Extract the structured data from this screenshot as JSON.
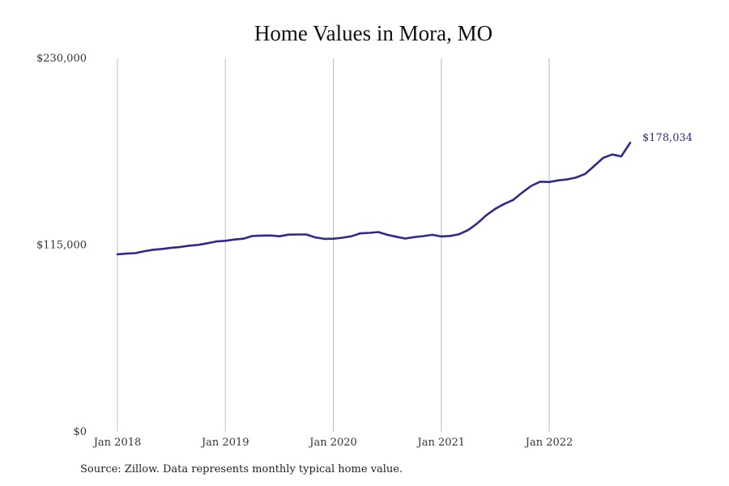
{
  "chart_data": {
    "type": "line",
    "title": "Home Values in Mora, MO",
    "xlabel": "",
    "ylabel": "",
    "ylim": [
      0,
      230000
    ],
    "y_ticks": [
      {
        "value": 0,
        "label": "$0"
      },
      {
        "value": 115000,
        "label": "$115,000"
      },
      {
        "value": 230000,
        "label": "$230,000"
      }
    ],
    "x_ticks": [
      {
        "value": "2018-01",
        "label": "Jan 2018"
      },
      {
        "value": "2019-01",
        "label": "Jan 2019"
      },
      {
        "value": "2020-01",
        "label": "Jan 2020"
      },
      {
        "value": "2021-01",
        "label": "Jan 2021"
      },
      {
        "value": "2022-01",
        "label": "Jan 2022"
      }
    ],
    "grid": {
      "vertical": true,
      "horizontal": false
    },
    "line_color": "#2e2a8c",
    "end_label": "$178,034",
    "x": [
      "2018-01",
      "2018-02",
      "2018-03",
      "2018-04",
      "2018-05",
      "2018-06",
      "2018-07",
      "2018-08",
      "2018-09",
      "2018-10",
      "2018-11",
      "2018-12",
      "2019-01",
      "2019-02",
      "2019-03",
      "2019-04",
      "2019-05",
      "2019-06",
      "2019-07",
      "2019-08",
      "2019-09",
      "2019-10",
      "2019-11",
      "2019-12",
      "2020-01",
      "2020-02",
      "2020-03",
      "2020-04",
      "2020-05",
      "2020-06",
      "2020-07",
      "2020-08",
      "2020-09",
      "2020-10",
      "2020-11",
      "2020-12",
      "2021-01",
      "2021-02",
      "2021-03",
      "2021-04",
      "2021-05",
      "2021-06",
      "2021-07",
      "2021-08",
      "2021-09",
      "2021-10",
      "2021-11",
      "2021-12",
      "2022-01",
      "2022-02",
      "2022-03",
      "2022-04",
      "2022-05",
      "2022-06",
      "2022-07",
      "2022-08",
      "2022-09",
      "2022-10"
    ],
    "series": [
      {
        "values": [
          109300,
          109700,
          110000,
          111200,
          112100,
          112600,
          113300,
          113800,
          114600,
          115100,
          116100,
          117200,
          117600,
          118400,
          118900,
          120600,
          120800,
          120900,
          120400,
          121400,
          121500,
          121500,
          119700,
          118800,
          118900,
          119500,
          120400,
          122200,
          122500,
          123000,
          121300,
          120100,
          119000,
          119900,
          120500,
          121300,
          120300,
          120600,
          121700,
          124300,
          128300,
          133300,
          137300,
          140300,
          142800,
          147300,
          151400,
          154000,
          153800,
          154800,
          155400,
          156600,
          158800,
          163700,
          168700,
          170800,
          169600,
          178034
        ]
      }
    ]
  },
  "footer": {
    "source": "Source: Zillow. Data represents monthly typical home value."
  }
}
